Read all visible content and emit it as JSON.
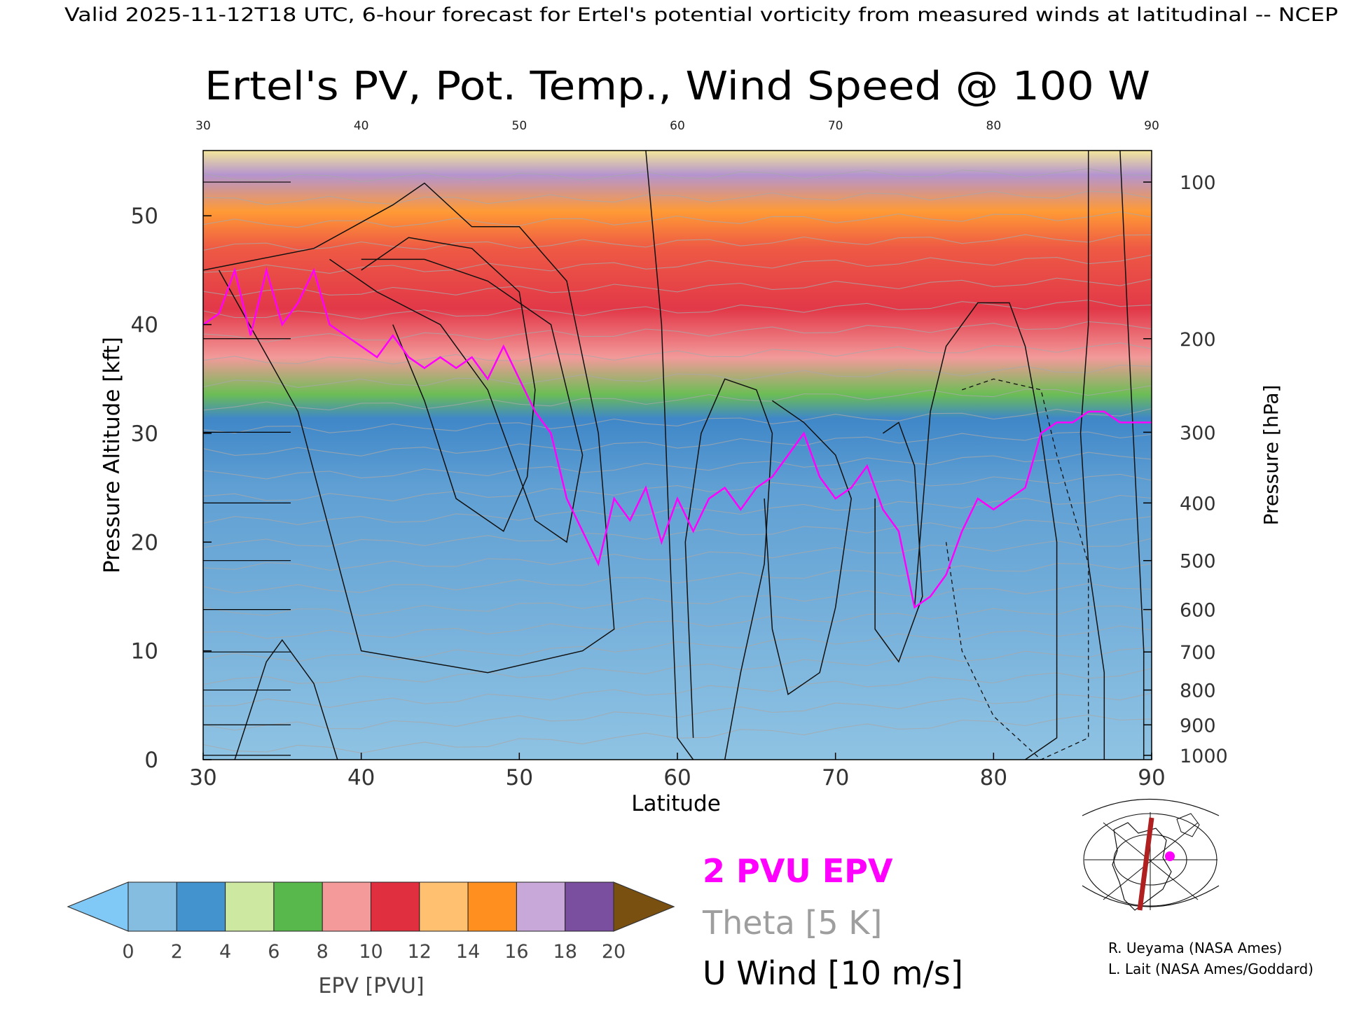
{
  "header": "Valid 2025-11-12T18 UTC, 6-hour forecast for Ertel's potential vorticity from measured winds at latitudinal -- NCEP",
  "chart_data": {
    "type": "heatmap",
    "title": "Ertel's PV, Pot. Temp., Wind Speed @ 100 W",
    "xlabel": "Latitude",
    "ylabel": "Pressure Altitude [kft]",
    "y2label": "Pressure [hPa]",
    "xlim": [
      30,
      90
    ],
    "ylim": [
      0,
      56
    ],
    "x_ticks": [
      "30",
      "40",
      "50",
      "60",
      "70",
      "80",
      "90"
    ],
    "x_ticks_top": [
      "30",
      "40",
      "50",
      "60",
      "70",
      "80",
      "90"
    ],
    "y_ticks": [
      0,
      10,
      20,
      30,
      40,
      50
    ],
    "pressure_ticks": [
      {
        "label": "100",
        "kft": 53.1
      },
      {
        "label": "200",
        "kft": 38.7
      },
      {
        "label": "300",
        "kft": 30.1
      },
      {
        "label": "400",
        "kft": 23.6
      },
      {
        "label": "500",
        "kft": 18.3
      },
      {
        "label": "600",
        "kft": 13.8
      },
      {
        "label": "700",
        "kft": 9.9
      },
      {
        "label": "800",
        "kft": 6.4
      },
      {
        "label": "900",
        "kft": 3.2
      },
      {
        "label": "1000",
        "kft": 0.4
      }
    ],
    "epv_2pvu_kft": [
      [
        30,
        40
      ],
      [
        31,
        41
      ],
      [
        32,
        45
      ],
      [
        33,
        39
      ],
      [
        34,
        45
      ],
      [
        35,
        40
      ],
      [
        36,
        42
      ],
      [
        37,
        45
      ],
      [
        38,
        40
      ],
      [
        39,
        39
      ],
      [
        40,
        38
      ],
      [
        41,
        37
      ],
      [
        42,
        39
      ],
      [
        43,
        37
      ],
      [
        44,
        36
      ],
      [
        45,
        37
      ],
      [
        46,
        36
      ],
      [
        47,
        37
      ],
      [
        48,
        35
      ],
      [
        49,
        38
      ],
      [
        50,
        35
      ],
      [
        51,
        32
      ],
      [
        52,
        30
      ],
      [
        53,
        24
      ],
      [
        54,
        21
      ],
      [
        55,
        18
      ],
      [
        56,
        24
      ],
      [
        57,
        22
      ],
      [
        58,
        25
      ],
      [
        59,
        20
      ],
      [
        60,
        24
      ],
      [
        61,
        21
      ],
      [
        62,
        24
      ],
      [
        63,
        25
      ],
      [
        64,
        23
      ],
      [
        65,
        25
      ],
      [
        66,
        26
      ],
      [
        67,
        28
      ],
      [
        68,
        30
      ],
      [
        69,
        26
      ],
      [
        70,
        24
      ],
      [
        71,
        25
      ],
      [
        72,
        27
      ],
      [
        73,
        23
      ],
      [
        74,
        21
      ],
      [
        75,
        14
      ],
      [
        76,
        15
      ],
      [
        77,
        17
      ],
      [
        78,
        21
      ],
      [
        79,
        24
      ],
      [
        80,
        23
      ],
      [
        81,
        24
      ],
      [
        82,
        25
      ],
      [
        83,
        30
      ],
      [
        84,
        31
      ],
      [
        85,
        31
      ],
      [
        86,
        32
      ],
      [
        87,
        32
      ],
      [
        88,
        31
      ],
      [
        89,
        31
      ],
      [
        90,
        31
      ]
    ],
    "colorbar": {
      "label": "EPV [PVU]",
      "ticks": [
        "0",
        "2",
        "4",
        "6",
        "8",
        "10",
        "12",
        "14",
        "16",
        "18",
        "20"
      ],
      "colors": [
        "#85bde0",
        "#4393cf",
        "#cde8a0",
        "#59b84b",
        "#f49a9a",
        "#e03040",
        "#ffc070",
        "#ff9020",
        "#c8a8d8",
        "#7a4fa0",
        "#f8f0a0"
      ],
      "under_color": "#80c8f5",
      "over_color": "#7a5010"
    },
    "legend": [
      {
        "label": "2 PVU EPV",
        "color": "#ff00ff"
      },
      {
        "label": "Theta [5 K]",
        "color": "#9e9e9e"
      },
      {
        "label": "U Wind [10 m/s]",
        "color": "#000000"
      }
    ]
  },
  "credits": [
    "R. Ueyama (NASA Ames)",
    "L. Lait (NASA Ames/Goddard)"
  ]
}
